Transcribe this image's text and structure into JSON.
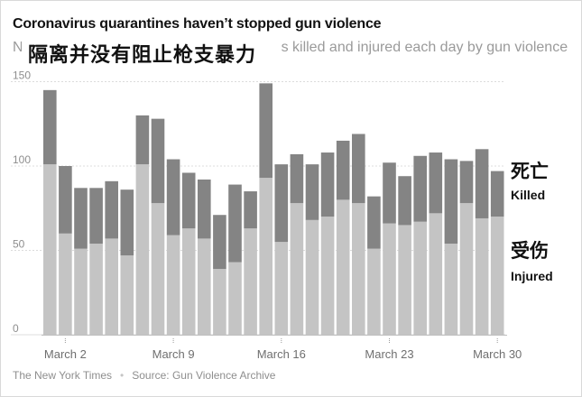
{
  "header": {
    "title": "Coronavirus quarantines haven’t stopped gun violence",
    "subtitle_visible_start": "N",
    "subtitle_visible_end": "s killed and injured each day by gun violence",
    "chinese_title": "隔离并没有阻止枪支暴力"
  },
  "labels": {
    "killed_cn": "死亡",
    "killed_en": "Killed",
    "injured_cn": "受伤",
    "injured_en": "Injured"
  },
  "footer": {
    "publisher": "The New York Times",
    "source": "Source: Gun Violence Archive"
  },
  "colors": {
    "killed": "#848484",
    "injured": "#c4c4c4",
    "grid": "#dcdcdc",
    "axis_text": "#8e8e8e"
  },
  "chart_data": {
    "type": "bar",
    "stacked": true,
    "ylim": [
      0,
      150
    ],
    "yticks": [
      0,
      50,
      100,
      150
    ],
    "xtick_labels": [
      {
        "label": "March 2",
        "index": 1
      },
      {
        "label": "March 9",
        "index": 8
      },
      {
        "label": "March 16",
        "index": 15
      },
      {
        "label": "March 23",
        "index": 22
      },
      {
        "label": "March 30",
        "index": 29
      }
    ],
    "grid": true,
    "series": [
      {
        "name": "Injured",
        "values": [
          101,
          60,
          51,
          54,
          57,
          47,
          101,
          78,
          59,
          63,
          57,
          39,
          43,
          63,
          93,
          55,
          78,
          68,
          70,
          80,
          78,
          51,
          66,
          65,
          67,
          72,
          54,
          78,
          69,
          70
        ]
      },
      {
        "name": "Killed",
        "values": [
          44,
          40,
          36,
          33,
          34,
          39,
          29,
          50,
          45,
          33,
          35,
          32,
          46,
          22,
          56,
          46,
          29,
          33,
          38,
          35,
          41,
          31,
          36,
          29,
          39,
          36,
          50,
          25,
          41,
          27
        ]
      }
    ]
  }
}
